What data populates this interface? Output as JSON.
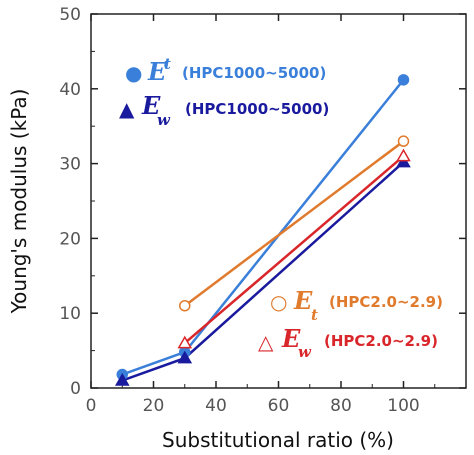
{
  "chart_data": {
    "type": "line",
    "xlabel": "Substitutional ratio (%)",
    "ylabel": "Young's modulus (kPa)",
    "xlim": [
      0,
      120
    ],
    "ylim": [
      0,
      50
    ],
    "xticks": [
      0,
      20,
      40,
      60,
      80,
      100
    ],
    "yticks": [
      0,
      10,
      20,
      30,
      40,
      50
    ],
    "grid": false,
    "legend_placement": "top-left and bottom-right",
    "series": [
      {
        "id": "Et_HPC",
        "symbol_name": "filled-circle",
        "legend_symbol": "●",
        "legend_main": "E",
        "legend_sub": "t",
        "legend_sub_position": "super",
        "legend_range": "(HPC1000~5000)",
        "color": "#3a7fd9",
        "marker": "circle",
        "filled": true,
        "x": [
          10,
          30,
          100
        ],
        "y": [
          1.8,
          4.8,
          41.2
        ]
      },
      {
        "id": "Ew_HPC",
        "symbol_name": "filled-triangle",
        "legend_symbol": "▲",
        "legend_main": "E",
        "legend_sub": "w",
        "legend_sub_position": "sub",
        "legend_range": "(HPC1000~5000)",
        "color": "#1a1a9e",
        "marker": "triangle",
        "filled": true,
        "x": [
          10,
          30,
          100
        ],
        "y": [
          1.0,
          4.0,
          30.2
        ]
      },
      {
        "id": "Et_HPC2",
        "symbol_name": "open-circle",
        "legend_symbol": "○",
        "legend_main": "E",
        "legend_sub": "t",
        "legend_sub_position": "sub",
        "legend_range": "(HPC2.0~2.9)",
        "color": "#e07b2e",
        "marker": "circle",
        "filled": false,
        "x": [
          30,
          100
        ],
        "y": [
          11.0,
          33.0
        ]
      },
      {
        "id": "Ew_HPC2",
        "symbol_name": "open-triangle",
        "legend_symbol": "△",
        "legend_main": "E",
        "legend_sub": "w",
        "legend_sub_position": "sub",
        "legend_range": "(HPC2.0~2.9)",
        "color": "#d9262b",
        "marker": "triangle",
        "filled": false,
        "x": [
          30,
          100
        ],
        "y": [
          6.0,
          31.0
        ]
      }
    ]
  }
}
